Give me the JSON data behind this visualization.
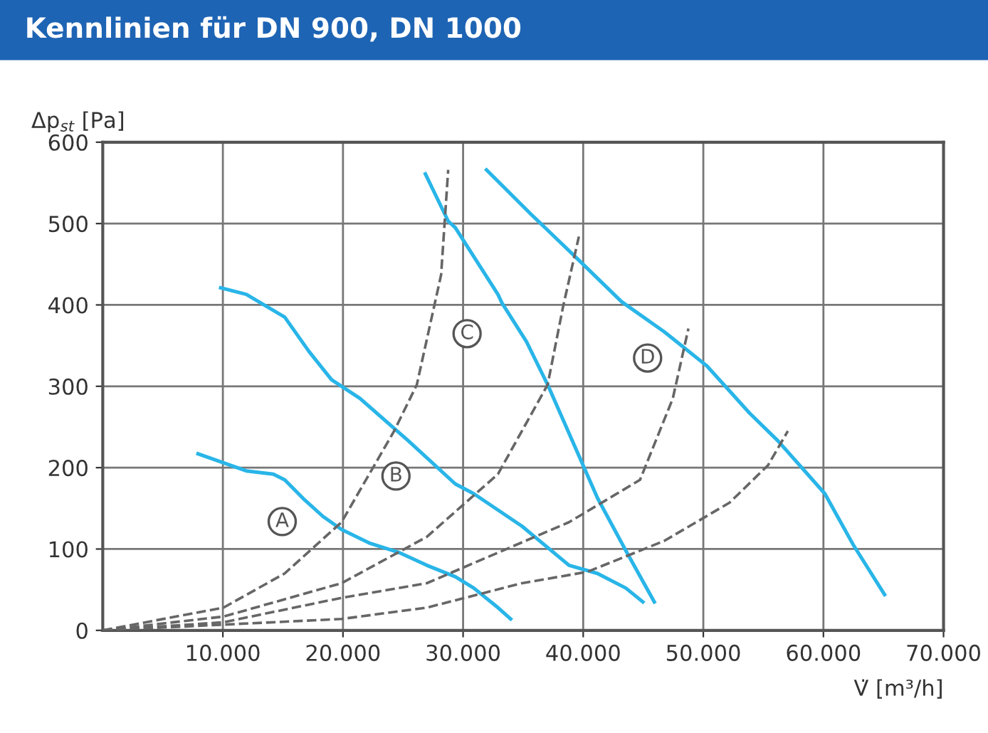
{
  "chart_data": {
    "type": "line",
    "title": "Kennlinien für DN 900, DN 1000",
    "xlabel": "V̇ [m³/h]",
    "ylabel": "Δp$_{st}$ [Pa]",
    "xlim": [
      0,
      70000
    ],
    "ylim": [
      0,
      600
    ],
    "xticks": [
      {
        "value": 10000,
        "label": "10.000"
      },
      {
        "value": 20000,
        "label": "20.000"
      },
      {
        "value": 30000,
        "label": "30.000"
      },
      {
        "value": 40000,
        "label": "40.000"
      },
      {
        "value": 50000,
        "label": "50.000"
      },
      {
        "value": 60000,
        "label": "60.000"
      },
      {
        "value": 70000,
        "label": "70.000"
      }
    ],
    "yticks": [
      0,
      100,
      200,
      300,
      400,
      500,
      600
    ],
    "grid": true,
    "legend": false,
    "marker": "none",
    "series": [
      {
        "name": "A",
        "color": "#29b5e8",
        "line_style": "solid",
        "x": [
          7930,
          10060,
          11950,
          14200,
          15150,
          16690,
          18340,
          19880,
          22250,
          24620,
          26980,
          29350,
          30890,
          32900,
          33960
        ],
        "values": [
          217,
          206,
          196,
          192,
          185,
          162,
          140,
          124,
          107,
          96,
          80,
          66,
          52,
          28,
          14
        ]
      },
      {
        "name": "B",
        "color": "#29b5e8",
        "line_style": "solid",
        "x": [
          9820,
          11950,
          15150,
          17160,
          19050,
          21420,
          25440,
          29350,
          30890,
          34910,
          38820,
          41180,
          43550,
          44970
        ],
        "values": [
          421,
          413,
          385,
          343,
          308,
          285,
          233,
          180,
          168,
          128,
          80,
          70,
          52,
          35
        ]
      },
      {
        "name": "C",
        "color": "#29b5e8",
        "line_style": "solid",
        "x": [
          26860,
          28760,
          29350,
          32900,
          33250,
          35270,
          37040,
          41180,
          43550,
          45920
        ],
        "values": [
          561,
          503,
          495,
          413,
          402,
          355,
          302,
          163,
          98,
          35
        ]
      },
      {
        "name": "D",
        "color": "#29b5e8",
        "line_style": "solid",
        "x": [
          31950,
          35620,
          39640,
          43190,
          46750,
          50300,
          53850,
          56210,
          60120,
          62490,
          65090
        ],
        "values": [
          566,
          512,
          455,
          404,
          367,
          325,
          267,
          233,
          168,
          105,
          44
        ]
      },
      {
        "color": "#666666",
        "line_style": "dashed",
        "x": [
          0,
          10060,
          15150,
          19880,
          24260,
          26150,
          28170,
          28760
        ],
        "values": [
          0,
          28,
          70,
          133,
          245,
          302,
          437,
          566
        ]
      },
      {
        "color": "#666666",
        "line_style": "dashed",
        "x": [
          0,
          10060,
          19880,
          24620,
          26980,
          32900,
          37040,
          38340,
          39640
        ],
        "values": [
          0,
          17,
          58,
          96,
          115,
          192,
          302,
          399,
          484
        ]
      },
      {
        "color": "#666666",
        "line_style": "dashed",
        "x": [
          0,
          10060,
          19880,
          26980,
          38820,
          44730,
          47460,
          48760
        ],
        "values": [
          0,
          10,
          40,
          58,
          133,
          185,
          285,
          371
        ]
      },
      {
        "color": "#666666",
        "line_style": "dashed",
        "x": [
          0,
          19880,
          26980,
          34910,
          40360,
          46750,
          52190,
          55390,
          57040
        ],
        "values": [
          0,
          14,
          28,
          58,
          72,
          110,
          157,
          203,
          245
        ]
      }
    ]
  }
}
